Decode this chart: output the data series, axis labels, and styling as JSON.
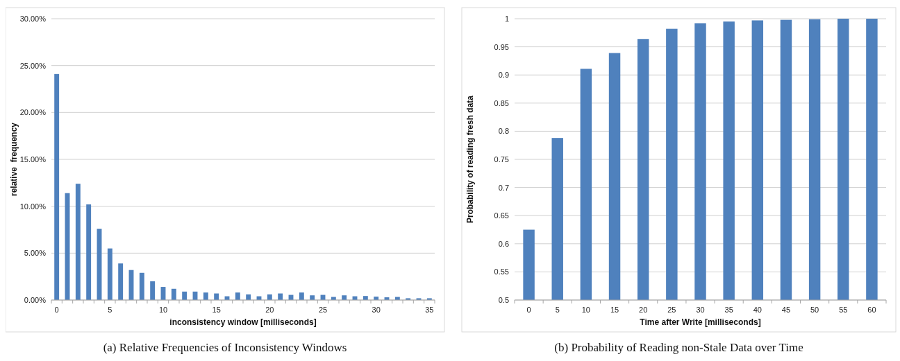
{
  "chart_data": [
    {
      "type": "bar",
      "title": "(a) Relative Frequencies of Inconsistency Windows",
      "xlabel": "inconsistency window [milliseconds]",
      "ylabel": "relative  frequency",
      "categories": [
        "0",
        null,
        null,
        null,
        null,
        "5",
        null,
        null,
        null,
        null,
        "10",
        null,
        null,
        null,
        null,
        "15",
        null,
        null,
        null,
        null,
        "20",
        null,
        null,
        null,
        null,
        "25",
        null,
        null,
        null,
        null,
        "30",
        null,
        null,
        null,
        null,
        "35"
      ],
      "values": [
        24.1,
        11.4,
        12.4,
        10.2,
        7.6,
        5.5,
        3.9,
        3.2,
        2.9,
        2.0,
        1.4,
        1.2,
        0.9,
        0.9,
        0.8,
        0.7,
        0.4,
        0.8,
        0.6,
        0.4,
        0.6,
        0.7,
        0.55,
        0.8,
        0.5,
        0.55,
        0.33,
        0.5,
        0.4,
        0.43,
        0.36,
        0.29,
        0.33,
        0.19,
        0.19,
        0.19
      ],
      "color": "#4f81bd",
      "ylim": [
        0,
        30
      ],
      "yticks": [
        {
          "value": 0,
          "label": "0.00%"
        },
        {
          "value": 5,
          "label": "5.00%"
        },
        {
          "value": 10,
          "label": "10.00%"
        },
        {
          "value": 15,
          "label": "15.00%"
        },
        {
          "value": 20,
          "label": "20.00%"
        },
        {
          "value": 25,
          "label": "25.00%"
        },
        {
          "value": 30,
          "label": "30.00%"
        }
      ],
      "grid": "y"
    },
    {
      "type": "bar",
      "title": "(b) Probability of Reading non-Stale Data over Time",
      "xlabel": "Time after Write [milliseconds]",
      "ylabel": "Probability of reading fresh data",
      "categories": [
        "0",
        "5",
        "10",
        "15",
        "20",
        "25",
        "30",
        "35",
        "40",
        "45",
        "50",
        "55",
        "60"
      ],
      "values": [
        0.625,
        0.788,
        0.911,
        0.939,
        0.964,
        0.982,
        0.992,
        0.995,
        0.997,
        0.998,
        0.999,
        1,
        1
      ],
      "color": "#4f81bd",
      "ylim": [
        0.5,
        1
      ],
      "yticks": [
        0.5,
        0.55,
        0.6,
        0.65,
        0.7,
        0.75,
        0.8,
        0.85,
        0.9,
        0.95,
        1
      ],
      "grid": "y"
    }
  ]
}
